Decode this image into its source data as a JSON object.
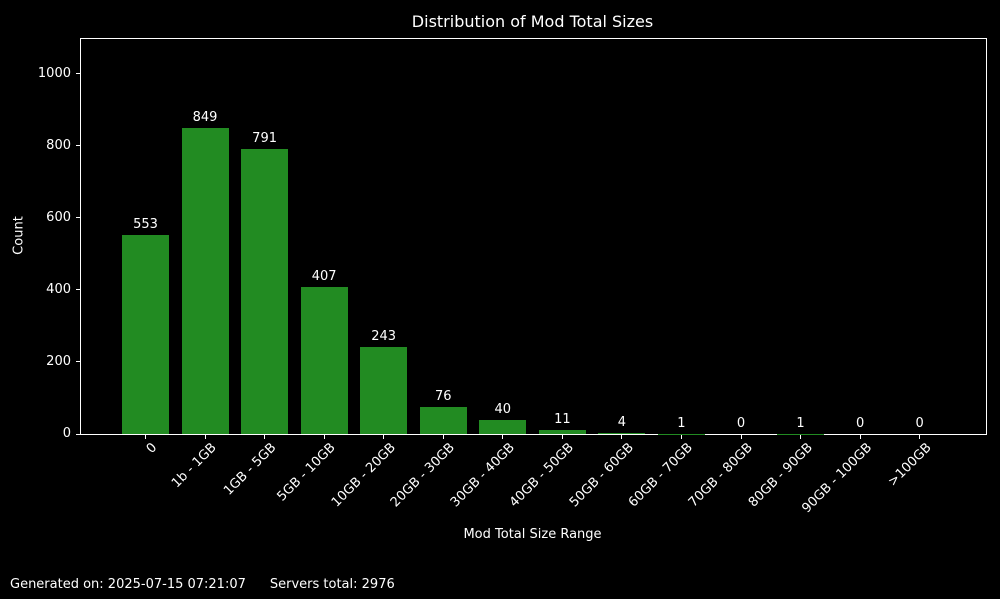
{
  "title": "Distribution of Mod Total Sizes",
  "footer": {
    "generated": "Generated on: 2025-07-15 07:21:07",
    "servers_total": "Servers total: 2976"
  },
  "chart_data": {
    "type": "bar",
    "title": "Distribution of Mod Total Sizes",
    "xlabel": "Mod Total Size Range",
    "ylabel": "Count",
    "categories": [
      "0",
      "1b - 1GB",
      "1GB - 5GB",
      "5GB - 10GB",
      "10GB - 20GB",
      "20GB - 30GB",
      "30GB - 40GB",
      "40GB - 50GB",
      "50GB - 60GB",
      "60GB - 70GB",
      "70GB - 80GB",
      "80GB - 90GB",
      "90GB - 100GB",
      ">100GB"
    ],
    "values": [
      553,
      849,
      791,
      407,
      243,
      76,
      40,
      11,
      4,
      1,
      0,
      1,
      0,
      0
    ],
    "yticks": [
      0,
      200,
      400,
      600,
      800,
      1000
    ],
    "ylim": [
      0,
      1097
    ],
    "xtick_rotation_deg": 45,
    "grid": false,
    "legend": false,
    "bar_color": "#228b22",
    "background_color": "#000000",
    "text_color": "#ffffff",
    "spine_color": "#ffffff"
  }
}
